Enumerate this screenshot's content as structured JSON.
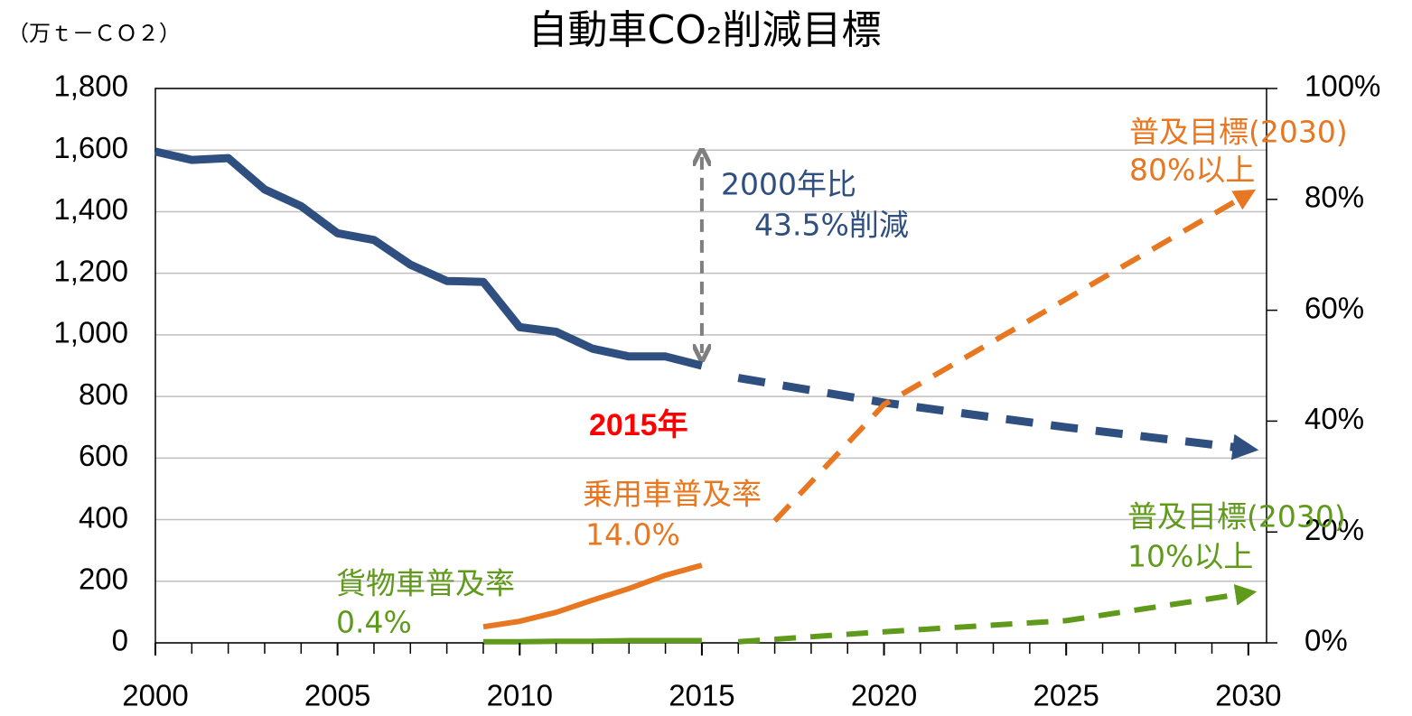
{
  "chart_data": {
    "type": "line",
    "title": "自動車CO₂削減目標",
    "y_label": "（万ｔ－ＣＯ２）",
    "xlim": [
      2000,
      2030.5
    ],
    "xticks": [
      2000,
      2005,
      2010,
      2015,
      2020,
      2025,
      2030
    ],
    "ylim": [
      0,
      1800
    ],
    "yticks": [
      0,
      200,
      400,
      600,
      800,
      {
        "value": 1000,
        "label": "1,000"
      },
      {
        "value": 1200,
        "label": "1,200"
      },
      {
        "value": 1400,
        "label": "1,400"
      },
      {
        "value": 1600,
        "label": "1,600"
      },
      {
        "value": 1800,
        "label": "1,800"
      }
    ],
    "y2lim": [
      0,
      100
    ],
    "y2ticks": [
      {
        "value": 0,
        "label": "0%"
      },
      {
        "value": 20,
        "label": "20%"
      },
      {
        "value": 40,
        "label": "40%"
      },
      {
        "value": 60,
        "label": "60%"
      },
      {
        "value": 80,
        "label": "80%"
      },
      {
        "value": 100,
        "label": "100%"
      }
    ],
    "grid": true,
    "series": [
      {
        "color": "#2e4f7f",
        "width": 9,
        "dashed": false,
        "x": [
          2000,
          2001,
          2002,
          2003,
          2004,
          2005,
          2006,
          2007,
          2008,
          2009,
          2010,
          2011,
          2012,
          2013,
          2014,
          2015
        ],
        "values": [
          1595,
          1568,
          1574,
          1472,
          1418,
          1330,
          1308,
          1228,
          1175,
          1172,
          1025,
          1010,
          955,
          930,
          930,
          900
        ]
      },
      {
        "color": "#2e4f7f",
        "width": 9,
        "dashed": true,
        "x": [
          2016,
          2020,
          2025,
          2030
        ],
        "values": [
          860,
          780,
          700,
          630
        ]
      },
      {
        "color": "#e87722",
        "width": 6,
        "dashed": false,
        "axis": "y2",
        "x": [
          2009,
          2010,
          2011,
          2012,
          2013,
          2014,
          2015
        ],
        "values": [
          2.9,
          3.9,
          5.5,
          7.7,
          9.8,
          12.2,
          14.0
        ]
      },
      {
        "color": "#e87722",
        "width": 6,
        "dashed": true,
        "axis": "y2",
        "x": [
          2017,
          2020,
          2025,
          2030
        ],
        "values": [
          22,
          43,
          62,
          81
        ]
      },
      {
        "color": "#5f9a1a",
        "width": 6,
        "dashed": false,
        "axis": "y2",
        "x": [
          2009,
          2010,
          2011,
          2012,
          2013,
          2014,
          2015
        ],
        "values": [
          0.2,
          0.2,
          0.3,
          0.3,
          0.4,
          0.4,
          0.4
        ]
      },
      {
        "color": "#5f9a1a",
        "width": 6,
        "dashed": true,
        "axis": "y2",
        "x": [
          2016,
          2020,
          2025,
          2030
        ],
        "values": [
          0.2,
          2,
          4,
          9
        ]
      }
    ],
    "annotations": [
      {
        "lines": [
          "2000年比",
          "43.5%削減"
        ],
        "color": "#2e4f7f"
      },
      {
        "lines": [
          "2015年"
        ],
        "color": "#ff0000"
      },
      {
        "lines": [
          "乗用車普及率",
          "14.0%"
        ],
        "color": "#e87722"
      },
      {
        "lines": [
          "普及目標(2030)",
          "80%以上"
        ],
        "color": "#e87722"
      },
      {
        "lines": [
          "貨物車普及率",
          "0.4%"
        ],
        "color": "#5f9a1a"
      },
      {
        "lines": [
          "普及目標(2030)",
          "10%以上"
        ],
        "color": "#5f9a1a"
      }
    ]
  }
}
